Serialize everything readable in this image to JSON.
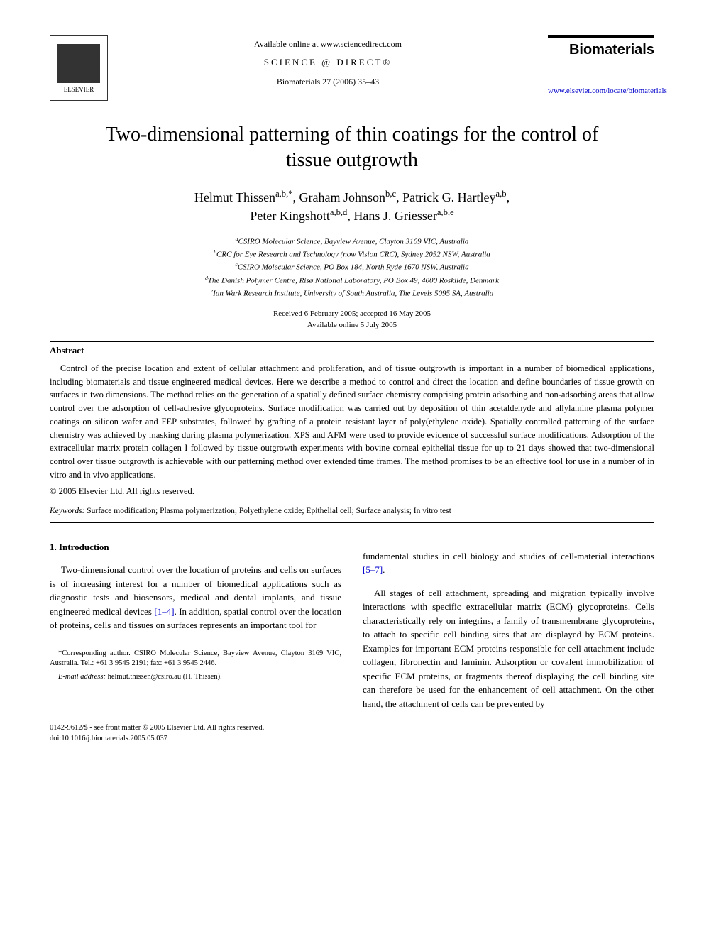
{
  "header": {
    "available_online": "Available online at www.sciencedirect.com",
    "science_direct": "SCIENCE @ DIRECT®",
    "citation": "Biomaterials 27 (2006) 35–43",
    "publisher": "ELSEVIER",
    "journal_name": "Biomaterials",
    "journal_url": "www.elsevier.com/locate/biomaterials"
  },
  "title": "Two-dimensional patterning of thin coatings for the control of tissue outgrowth",
  "authors_line1": "Helmut Thissen",
  "authors_sup1": "a,b,*",
  "authors_line1b": ", Graham Johnson",
  "authors_sup2": "b,c",
  "authors_line1c": ", Patrick G. Hartley",
  "authors_sup3": "a,b",
  "authors_line1d": ",",
  "authors_line2": "Peter Kingshott",
  "authors_sup4": "a,b,d",
  "authors_line2b": ", Hans J. Griesser",
  "authors_sup5": "a,b,e",
  "affiliations": {
    "a": "CSIRO Molecular Science, Bayview Avenue, Clayton 3169 VIC, Australia",
    "b": "CRC for Eye Research and Technology (now Vision CRC), Sydney 2052 NSW, Australia",
    "c": "CSIRO Molecular Science, PO Box 184, North Ryde 1670 NSW, Australia",
    "d": "The Danish Polymer Centre, Risø National Laboratory, PO Box 49, 4000 Roskilde, Denmark",
    "e": "Ian Wark Research Institute, University of South Australia, The Levels 5095 SA, Australia"
  },
  "dates": {
    "received": "Received 6 February 2005; accepted 16 May 2005",
    "online": "Available online 5 July 2005"
  },
  "abstract_heading": "Abstract",
  "abstract_text": "Control of the precise location and extent of cellular attachment and proliferation, and of tissue outgrowth is important in a number of biomedical applications, including biomaterials and tissue engineered medical devices. Here we describe a method to control and direct the location and define boundaries of tissue growth on surfaces in two dimensions. The method relies on the generation of a spatially defined surface chemistry comprising protein adsorbing and non-adsorbing areas that allow control over the adsorption of cell-adhesive glycoproteins. Surface modification was carried out by deposition of thin acetaldehyde and allylamine plasma polymer coatings on silicon wafer and FEP substrates, followed by grafting of a protein resistant layer of poly(ethylene oxide). Spatially controlled patterning of the surface chemistry was achieved by masking during plasma polymerization. XPS and AFM were used to provide evidence of successful surface modifications. Adsorption of the extracellular matrix protein collagen I followed by tissue outgrowth experiments with bovine corneal epithelial tissue for up to 21 days showed that two-dimensional control over tissue outgrowth is achievable with our patterning method over extended time frames. The method promises to be an effective tool for use in a number of in vitro and in vivo applications.",
  "copyright": "© 2005 Elsevier Ltd. All rights reserved.",
  "keywords_label": "Keywords:",
  "keywords_text": " Surface modification; Plasma polymerization; Polyethylene oxide; Epithelial cell; Surface analysis; In vitro test",
  "section1_heading": "1. Introduction",
  "col1_para1a": "Two-dimensional control over the location of proteins and cells on surfaces is of increasing interest for a number of biomedical applications such as diagnostic tests and biosensors, medical and dental implants, and tissue engineered medical devices ",
  "col1_ref1": "[1–4]",
  "col1_para1b": ". In addition, spatial control over the location of proteins, cells and tissues on surfaces represents an important tool for",
  "col2_para1a": "fundamental studies in cell biology and studies of cell-material interactions ",
  "col2_ref1": "[5–7]",
  "col2_para1b": ".",
  "col2_para2": "All stages of cell attachment, spreading and migration typically involve interactions with specific extracellular matrix (ECM) glycoproteins. Cells characteristically rely on integrins, a family of transmembrane glycoproteins, to attach to specific cell binding sites that are displayed by ECM proteins. Examples for important ECM proteins responsible for cell attachment include collagen, fibronectin and laminin. Adsorption or covalent immobilization of specific ECM proteins, or fragments thereof displaying the cell binding site can therefore be used for the enhancement of cell attachment. On the other hand, the attachment of cells can be prevented by",
  "footnote_corr": "*Corresponding author. CSIRO Molecular Science, Bayview Avenue, Clayton 3169 VIC, Australia. Tel.: +61 3 9545 2191; fax: +61 3 9545 2446.",
  "footnote_email_label": "E-mail address:",
  "footnote_email": " helmut.thissen@csiro.au (H. Thissen).",
  "footer_line1": "0142-9612/$ - see front matter © 2005 Elsevier Ltd. All rights reserved.",
  "footer_line2": "doi:10.1016/j.biomaterials.2005.05.037"
}
